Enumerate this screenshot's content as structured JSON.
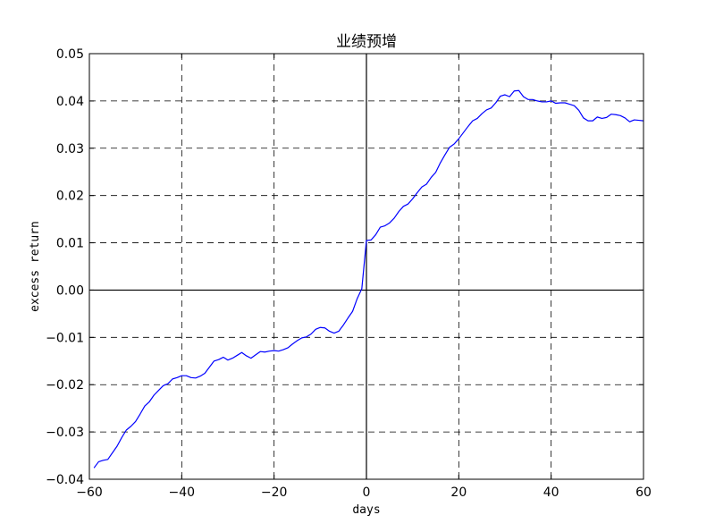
{
  "chart_data": {
    "type": "line",
    "title": "业绩预增",
    "xlabel": "days",
    "ylabel": "excess return",
    "xlim": [
      -60,
      60
    ],
    "ylim": [
      -0.04,
      0.05
    ],
    "grid": true,
    "xticks": [
      -60,
      -40,
      -20,
      0,
      20,
      40,
      60
    ],
    "xtick_labels": [
      "−60",
      "−40",
      "−20",
      "0",
      "20",
      "40",
      "60"
    ],
    "yticks": [
      -0.04,
      -0.03,
      -0.02,
      -0.01,
      0.0,
      0.01,
      0.02,
      0.03,
      0.04,
      0.05
    ],
    "ytick_labels": [
      "−0.04",
      "−0.03",
      "−0.02",
      "−0.01",
      "0.00",
      "0.01",
      "0.02",
      "0.03",
      "0.04",
      "0.05"
    ],
    "reference_lines": [
      {
        "axis": "x",
        "value": 0
      },
      {
        "axis": "y",
        "value": 0
      }
    ],
    "series": [
      {
        "name": "excess return",
        "color": "#0000ff",
        "x": [
          -59,
          -58,
          -57,
          -56,
          -55,
          -54,
          -53,
          -52,
          -51,
          -50,
          -49,
          -48,
          -47,
          -46,
          -45,
          -44,
          -43,
          -42,
          -41,
          -40,
          -39,
          -38,
          -37,
          -36,
          -35,
          -34,
          -33,
          -32,
          -31,
          -30,
          -29,
          -28,
          -27,
          -26,
          -25,
          -24,
          -23,
          -22,
          -21,
          -20,
          -19,
          -18,
          -17,
          -16,
          -15,
          -14,
          -13,
          -12,
          -11,
          -10,
          -9,
          -8,
          -7,
          -6,
          -5,
          -4,
          -3,
          -2,
          -1,
          0,
          1,
          2,
          3,
          4,
          5,
          6,
          7,
          8,
          9,
          10,
          11,
          12,
          13,
          14,
          15,
          16,
          17,
          18,
          19,
          20,
          21,
          22,
          23,
          24,
          25,
          26,
          27,
          28,
          29,
          30,
          31,
          32,
          33,
          34,
          35,
          36,
          37,
          38,
          39,
          40,
          41,
          42,
          43,
          44,
          45,
          46,
          47,
          48,
          49,
          50,
          51,
          52,
          53,
          54,
          55,
          56,
          57,
          58,
          59,
          60
        ],
        "values": [
          -0.0376,
          -0.0363,
          -0.036,
          -0.0358,
          -0.0344,
          -0.033,
          -0.0312,
          -0.0296,
          -0.0288,
          -0.0278,
          -0.0262,
          -0.0245,
          -0.0236,
          -0.0222,
          -0.0212,
          -0.0202,
          -0.0198,
          -0.0188,
          -0.0185,
          -0.0181,
          -0.0181,
          -0.0185,
          -0.0186,
          -0.0182,
          -0.0176,
          -0.0163,
          -0.015,
          -0.0147,
          -0.0142,
          -0.0148,
          -0.0144,
          -0.0138,
          -0.0132,
          -0.0139,
          -0.0144,
          -0.0137,
          -0.013,
          -0.0131,
          -0.0129,
          -0.0128,
          -0.0129,
          -0.0126,
          -0.0122,
          -0.0114,
          -0.0107,
          -0.0101,
          -0.0099,
          -0.0093,
          -0.0083,
          -0.0079,
          -0.008,
          -0.0087,
          -0.0091,
          -0.0087,
          -0.0074,
          -0.0059,
          -0.0045,
          -0.0018,
          0.0003,
          0.0105,
          0.0106,
          0.0117,
          0.0133,
          0.0136,
          0.0142,
          0.0152,
          0.0166,
          0.0177,
          0.0182,
          0.0193,
          0.0206,
          0.0218,
          0.0224,
          0.0238,
          0.0249,
          0.0269,
          0.0286,
          0.0302,
          0.0309,
          0.032,
          0.0333,
          0.0346,
          0.0358,
          0.0363,
          0.0373,
          0.0381,
          0.0385,
          0.0396,
          0.041,
          0.0413,
          0.0409,
          0.0421,
          0.0422,
          0.0409,
          0.0403,
          0.0403,
          0.04,
          0.0398,
          0.0398,
          0.04,
          0.0395,
          0.0396,
          0.0396,
          0.0393,
          0.039,
          0.038,
          0.0364,
          0.0358,
          0.0358,
          0.0366,
          0.0363,
          0.0365,
          0.0372,
          0.0371,
          0.0369,
          0.0364,
          0.0356,
          0.036,
          0.0359,
          0.0358
        ]
      }
    ]
  }
}
